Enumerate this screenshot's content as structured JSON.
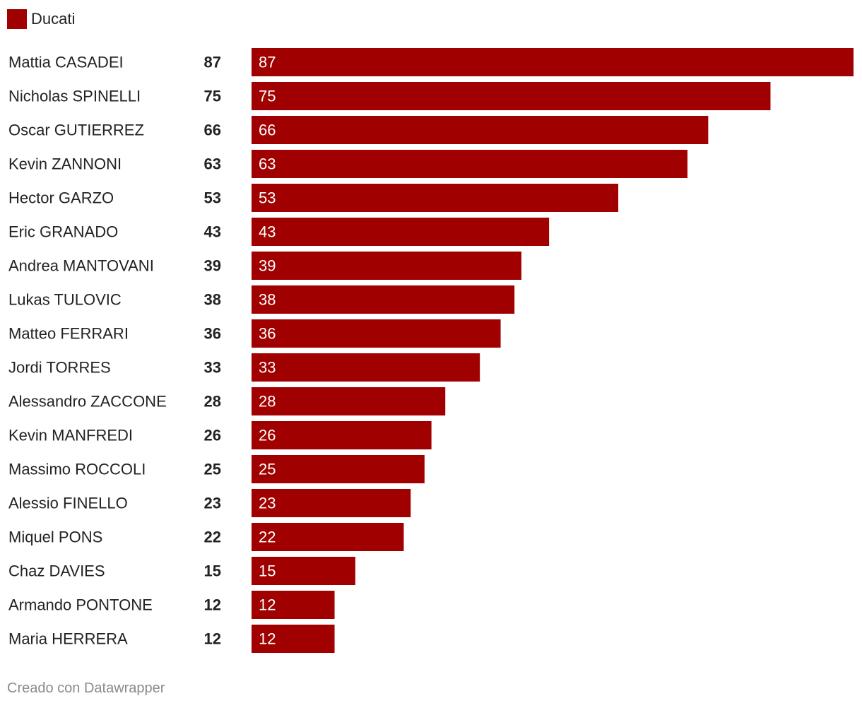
{
  "legend": {
    "label": "Ducati",
    "color": "#a00000"
  },
  "footer": {
    "credit": "Creado con Datawrapper"
  },
  "chart_data": {
    "type": "bar",
    "orientation": "horizontal",
    "categories": [
      "Mattia CASADEI",
      "Nicholas SPINELLI",
      "Oscar GUTIERREZ",
      "Kevin ZANNONI",
      "Hector GARZO",
      "Eric GRANADO",
      "Andrea MANTOVANI",
      "Lukas TULOVIC",
      "Matteo FERRARI",
      "Jordi TORRES",
      "Alessandro ZACCONE",
      "Kevin MANFREDI",
      "Massimo ROCCOLI",
      "Alessio FINELLO",
      "Miquel PONS",
      "Chaz DAVIES",
      "Armando PONTONE",
      "Maria HERRERA"
    ],
    "series": [
      {
        "name": "Ducati",
        "color": "#a00000",
        "values": [
          87,
          75,
          66,
          63,
          53,
          43,
          39,
          38,
          36,
          33,
          28,
          26,
          25,
          23,
          22,
          15,
          12,
          12
        ]
      }
    ],
    "xlim": [
      0,
      87
    ],
    "grid": false,
    "legend_position": "top-left"
  }
}
